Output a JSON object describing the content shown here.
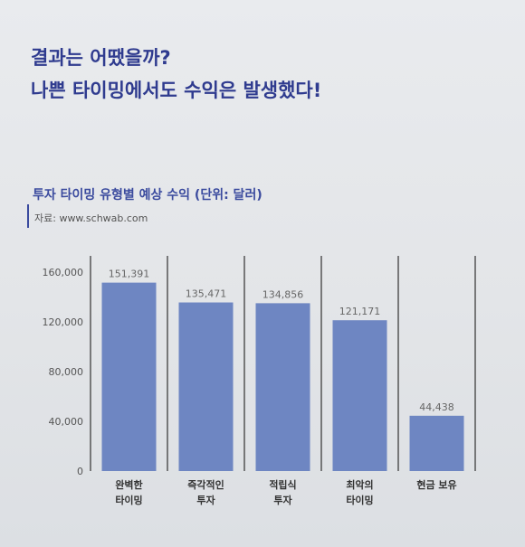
{
  "headline": {
    "line1": "결과는 어땠을까?",
    "line2": "나쁜 타이밍에서도 수익은 발생했다!"
  },
  "chart_data": {
    "type": "bar",
    "title": "투자 타이밍 유형별 예상 수익 (단위: 달러)",
    "source": "자료: www.schwab.com",
    "categories": [
      [
        "완벽한",
        "타이밍"
      ],
      [
        "즉각적인",
        "투자"
      ],
      [
        "적립식",
        "투자"
      ],
      [
        "최악의",
        "타이밍"
      ],
      [
        "현금 보유"
      ]
    ],
    "values": [
      151391,
      135471,
      134856,
      121171,
      44438
    ],
    "value_labels": [
      "151,391",
      "135,471",
      "134,856",
      "121,171",
      "44,438"
    ],
    "yticks": [
      "0",
      "40,000",
      "80,000",
      "120,000",
      "160,000"
    ],
    "ytick_values": [
      0,
      40000,
      80000,
      120000,
      160000
    ],
    "ylim": [
      0,
      170000
    ],
    "grid": false,
    "colors": {
      "bar": "#6e86c2",
      "divider": "#4a4a4a",
      "label": "#666666"
    }
  }
}
